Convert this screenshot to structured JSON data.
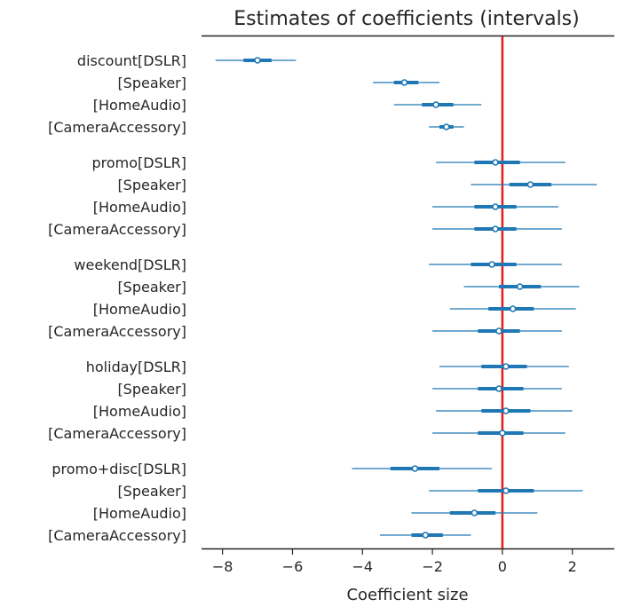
{
  "chart_data": {
    "type": "forest",
    "title": "Estimates of coefficients (intervals)",
    "xlabel": "Coefficient size",
    "xlim": [
      -8.6,
      3.2
    ],
    "xticks": [
      -8,
      -6,
      -4,
      -2,
      0,
      2
    ],
    "reference_line": {
      "x": 0,
      "color": "#e31a1c"
    },
    "series_color": "#1f77b4",
    "groups": [
      {
        "name": "discount",
        "rows": [
          {
            "label": "discount[DSLR]",
            "mean": -7.0,
            "hdi50": [
              -7.4,
              -6.6
            ],
            "hdi94": [
              -8.2,
              -5.9
            ]
          },
          {
            "label": "[Speaker]",
            "mean": -2.8,
            "hdi50": [
              -3.1,
              -2.4
            ],
            "hdi94": [
              -3.7,
              -1.8
            ]
          },
          {
            "label": "[HomeAudio]",
            "mean": -1.9,
            "hdi50": [
              -2.3,
              -1.4
            ],
            "hdi94": [
              -3.1,
              -0.6
            ]
          },
          {
            "label": "[CameraAccessory]",
            "mean": -1.6,
            "hdi50": [
              -1.8,
              -1.4
            ],
            "hdi94": [
              -2.1,
              -1.1
            ]
          }
        ]
      },
      {
        "name": "promo",
        "rows": [
          {
            "label": "promo[DSLR]",
            "mean": -0.2,
            "hdi50": [
              -0.8,
              0.5
            ],
            "hdi94": [
              -1.9,
              1.8
            ]
          },
          {
            "label": "[Speaker]",
            "mean": 0.8,
            "hdi50": [
              0.2,
              1.4
            ],
            "hdi94": [
              -0.9,
              2.7
            ]
          },
          {
            "label": "[HomeAudio]",
            "mean": -0.2,
            "hdi50": [
              -0.8,
              0.4
            ],
            "hdi94": [
              -2.0,
              1.6
            ]
          },
          {
            "label": "[CameraAccessory]",
            "mean": -0.2,
            "hdi50": [
              -0.8,
              0.4
            ],
            "hdi94": [
              -2.0,
              1.7
            ]
          }
        ]
      },
      {
        "name": "weekend",
        "rows": [
          {
            "label": "weekend[DSLR]",
            "mean": -0.3,
            "hdi50": [
              -0.9,
              0.4
            ],
            "hdi94": [
              -2.1,
              1.7
            ]
          },
          {
            "label": "[Speaker]",
            "mean": 0.5,
            "hdi50": [
              -0.1,
              1.1
            ],
            "hdi94": [
              -1.1,
              2.2
            ]
          },
          {
            "label": "[HomeAudio]",
            "mean": 0.3,
            "hdi50": [
              -0.4,
              0.9
            ],
            "hdi94": [
              -1.5,
              2.1
            ]
          },
          {
            "label": "[CameraAccessory]",
            "mean": -0.1,
            "hdi50": [
              -0.7,
              0.5
            ],
            "hdi94": [
              -2.0,
              1.7
            ]
          }
        ]
      },
      {
        "name": "holiday",
        "rows": [
          {
            "label": "holiday[DSLR]",
            "mean": 0.1,
            "hdi50": [
              -0.6,
              0.7
            ],
            "hdi94": [
              -1.8,
              1.9
            ]
          },
          {
            "label": "[Speaker]",
            "mean": -0.1,
            "hdi50": [
              -0.7,
              0.6
            ],
            "hdi94": [
              -2.0,
              1.7
            ]
          },
          {
            "label": "[HomeAudio]",
            "mean": 0.1,
            "hdi50": [
              -0.6,
              0.8
            ],
            "hdi94": [
              -1.9,
              2.0
            ]
          },
          {
            "label": "[CameraAccessory]",
            "mean": 0.0,
            "hdi50": [
              -0.7,
              0.6
            ],
            "hdi94": [
              -2.0,
              1.8
            ]
          }
        ]
      },
      {
        "name": "promo+disc",
        "rows": [
          {
            "label": "promo+disc[DSLR]",
            "mean": -2.5,
            "hdi50": [
              -3.2,
              -1.8
            ],
            "hdi94": [
              -4.3,
              -0.3
            ]
          },
          {
            "label": "[Speaker]",
            "mean": 0.1,
            "hdi50": [
              -0.7,
              0.9
            ],
            "hdi94": [
              -2.1,
              2.3
            ]
          },
          {
            "label": "[HomeAudio]",
            "mean": -0.8,
            "hdi50": [
              -1.5,
              -0.2
            ],
            "hdi94": [
              -2.6,
              1.0
            ]
          },
          {
            "label": "[CameraAccessory]",
            "mean": -2.2,
            "hdi50": [
              -2.6,
              -1.7
            ],
            "hdi94": [
              -3.5,
              -0.9
            ]
          }
        ]
      }
    ]
  }
}
